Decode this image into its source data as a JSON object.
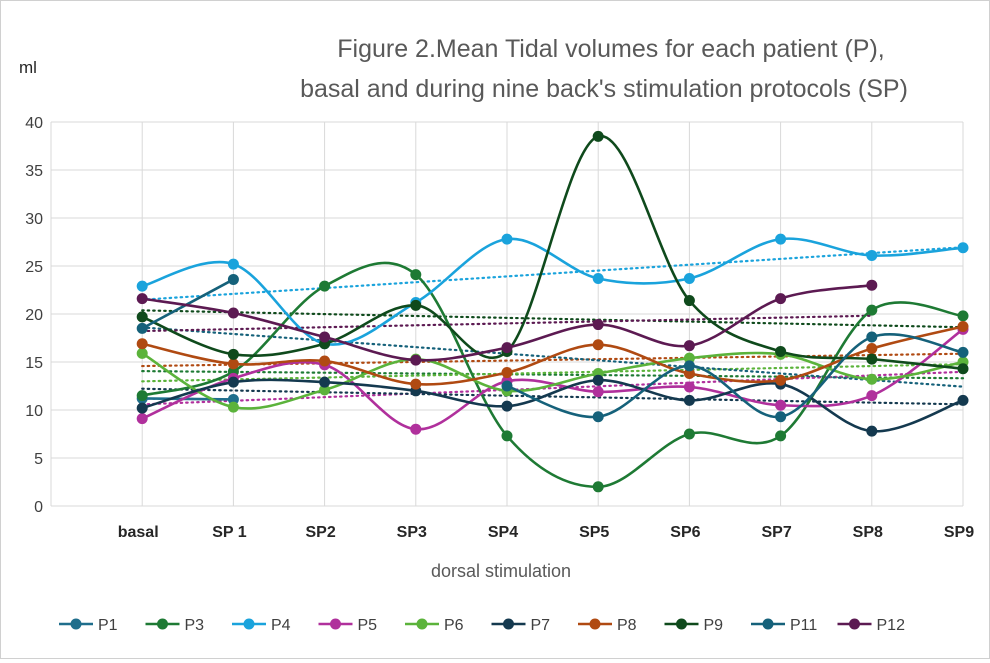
{
  "chart_data": {
    "type": "line",
    "title_line1": "Figure 2.Mean Tidal volumes for each patient (P),",
    "title_line2": "basal and during nine back's stimulation protocols (SP)",
    "ylabel": "ml",
    "xlabel": "dorsal stimulation",
    "categories": [
      "basal",
      "SP 1",
      "SP2",
      "SP3",
      "SP4",
      "SP5",
      "SP6",
      "SP7",
      "SP8",
      "SP9"
    ],
    "ylim": [
      0,
      40
    ],
    "yticks": [
      0,
      5,
      10,
      15,
      20,
      25,
      30,
      35,
      40
    ],
    "grid": true,
    "trendlines": "dotted linear trendline per series",
    "legend_position": "bottom",
    "series": [
      {
        "name": "P1",
        "color": "#1f6e8c",
        "values": [
          11.2,
          11.1,
          null,
          null,
          null,
          null,
          null,
          null,
          null,
          null
        ]
      },
      {
        "name": "P3",
        "color": "#1e7a34",
        "values": [
          11.5,
          14.0,
          22.9,
          24.1,
          7.3,
          2.0,
          7.5,
          7.3,
          20.4,
          19.8
        ]
      },
      {
        "name": "P4",
        "color": "#1aa3dc",
        "values": [
          22.9,
          25.2,
          16.9,
          21.2,
          27.8,
          23.7,
          23.7,
          27.8,
          26.1,
          26.9
        ]
      },
      {
        "name": "P5",
        "color": "#b0309c",
        "values": [
          9.1,
          13.3,
          14.7,
          8.0,
          13.0,
          11.9,
          12.4,
          10.5,
          11.5,
          18.4
        ]
      },
      {
        "name": "P6",
        "color": "#5bb33b",
        "values": [
          15.9,
          10.3,
          12.1,
          15.3,
          12.0,
          13.8,
          15.4,
          15.8,
          13.2,
          15.0
        ]
      },
      {
        "name": "P7",
        "color": "#14394f",
        "values": [
          10.2,
          12.9,
          12.9,
          12.0,
          10.4,
          13.1,
          11.0,
          12.7,
          7.8,
          11.0
        ]
      },
      {
        "name": "P8",
        "color": "#b04a12",
        "values": [
          16.9,
          14.8,
          15.1,
          12.7,
          13.9,
          16.8,
          13.8,
          13.1,
          16.4,
          18.7
        ]
      },
      {
        "name": "P9",
        "color": "#0f4a1c",
        "values": [
          19.7,
          15.8,
          16.9,
          20.9,
          16.1,
          38.5,
          21.4,
          16.1,
          15.3,
          14.3
        ]
      },
      {
        "name": "P11",
        "color": "#15617a",
        "values": [
          18.5,
          23.6,
          null,
          null,
          12.5,
          9.3,
          14.6,
          9.3,
          17.6,
          16.0
        ]
      },
      {
        "name": "P12",
        "color": "#5c1a52",
        "values": [
          21.6,
          20.1,
          17.6,
          15.2,
          16.5,
          18.9,
          16.7,
          21.6,
          23.0,
          null
        ]
      }
    ]
  }
}
